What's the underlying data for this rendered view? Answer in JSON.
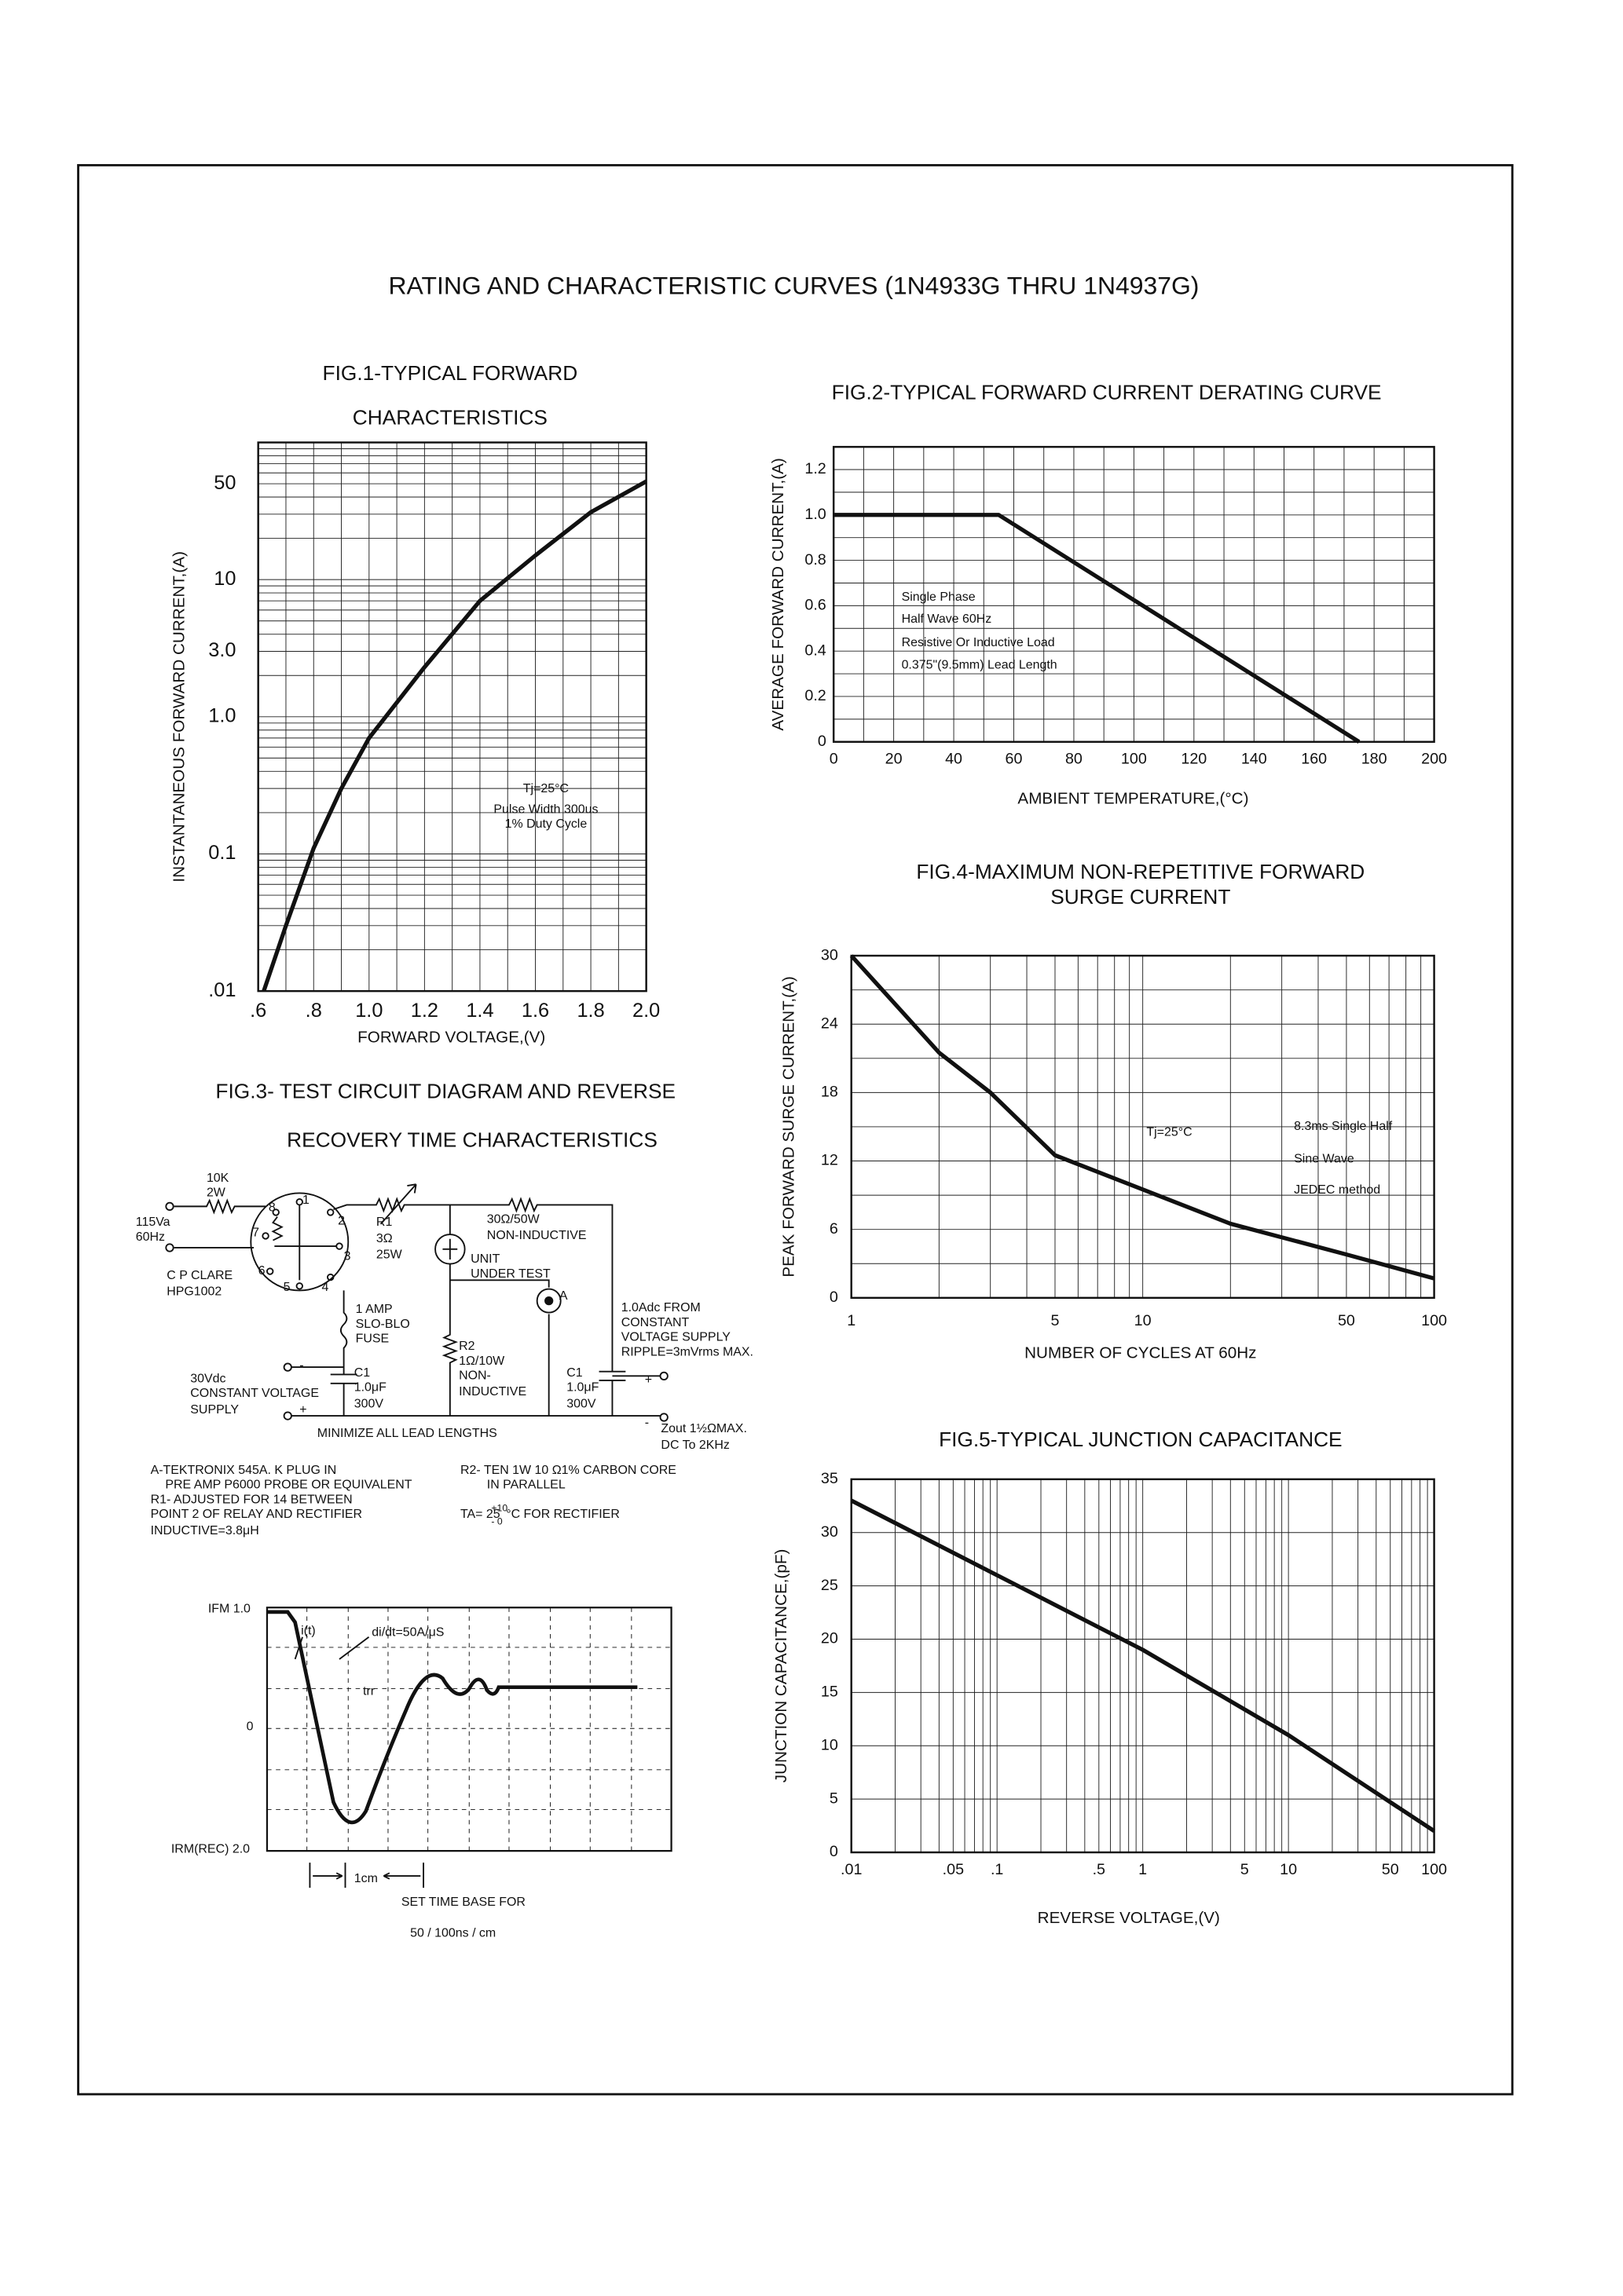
{
  "title": "RATING AND CHARACTERISTIC CURVES (1N4933G THRU 1N4937G)",
  "chart_data": [
    {
      "type": "line",
      "title": [
        "FIG.1-TYPICAL FORWARD",
        "CHARACTERISTICS"
      ],
      "x_label": "FORWARD VOLTAGE,(V)",
      "y_label": "INSTANTANEOUS FORWARD CURRENT,(A)",
      "xscale": "linear",
      "yscale": "log",
      "color": "#111111",
      "x": [
        0.62,
        0.7,
        0.8,
        0.9,
        1.0,
        1.2,
        1.4,
        1.6,
        1.8,
        2.0
      ],
      "values": [
        0.01,
        0.03,
        0.11,
        0.3,
        0.7,
        2.3,
        7,
        15,
        31,
        52
      ],
      "xlim": [
        0.6,
        2.0
      ],
      "ylim": [
        0.01,
        100
      ],
      "xticks": [
        {
          "value": 0.6,
          "label": ".6"
        },
        {
          "value": 0.8,
          "label": ".8"
        },
        {
          "value": 1.0,
          "label": "1.0"
        },
        1.2,
        1.4,
        1.6,
        1.8,
        {
          "value": 2.0,
          "label": "2.0"
        }
      ],
      "yticks": [
        {
          "value": 0.01,
          "label": ".01"
        },
        0.1,
        {
          "value": 1,
          "label": "1.0"
        },
        {
          "value": 3,
          "label": "3.0"
        },
        10,
        50
      ],
      "xgrid": [
        0.6,
        0.7,
        0.8,
        0.9,
        1.0,
        1.1,
        1.2,
        1.3,
        1.4,
        1.5,
        1.6,
        1.7,
        1.8,
        1.9,
        2.0
      ],
      "ygrid": [
        0.01,
        0.02,
        0.03,
        0.04,
        0.05,
        0.06,
        0.07,
        0.08,
        0.09,
        0.1,
        0.2,
        0.3,
        0.4,
        0.5,
        0.6,
        0.7,
        0.8,
        0.9,
        1,
        2,
        3,
        4,
        5,
        6,
        7,
        8,
        9,
        10,
        20,
        30,
        40,
        50,
        60,
        70,
        80,
        90,
        100
      ],
      "annotations": [
        "Tj=25°C",
        "Pulse Width 300us",
        "1% Duty Cycle"
      ]
    },
    {
      "type": "line",
      "title": [
        "FIG.2-TYPICAL FORWARD CURRENT DERATING CURVE"
      ],
      "x_label": "AMBIENT TEMPERATURE,(°C)",
      "y_label": "AVERAGE FORWARD CURRENT,(A)",
      "xscale": "linear",
      "yscale": "linear",
      "color": "#111111",
      "x": [
        0,
        55,
        175
      ],
      "values": [
        1.0,
        1.0,
        0
      ],
      "xlim": [
        0,
        200
      ],
      "ylim": [
        0,
        1.3
      ],
      "xticks": [
        0,
        20,
        40,
        60,
        80,
        100,
        120,
        140,
        160,
        180,
        200
      ],
      "yticks": [
        0,
        0.2,
        0.4,
        0.6,
        0.8,
        {
          "value": 1,
          "label": "1.0"
        },
        1.2
      ],
      "xgrid": [
        0,
        10,
        20,
        30,
        40,
        50,
        60,
        70,
        80,
        90,
        100,
        110,
        120,
        130,
        140,
        150,
        160,
        170,
        180,
        190,
        200
      ],
      "ygrid": [
        0,
        0.1,
        0.2,
        0.3,
        0.4,
        0.5,
        0.6,
        0.7,
        0.8,
        0.9,
        1.0,
        1.1,
        1.2,
        1.3
      ],
      "annotations": [
        "Single Phase",
        "Half Wave 60Hz",
        "Resistive Or Inductive Load",
        "0.375\"(9.5mm) Lead Length"
      ]
    },
    {
      "type": "line",
      "title": [
        "FIG.4-MAXIMUM NON-REPETITIVE FORWARD",
        "SURGE CURRENT"
      ],
      "x_label": "NUMBER OF CYCLES AT 60Hz",
      "y_label": "PEAK FORWARD SURGE CURRENT,(A)",
      "xscale": "log",
      "yscale": "linear",
      "color": "#111111",
      "x": [
        1,
        2,
        3,
        5,
        10,
        20,
        50,
        100
      ],
      "values": [
        30,
        21.5,
        18,
        12.5,
        9.5,
        6.5,
        3.8,
        1.7
      ],
      "xlim": [
        1,
        100
      ],
      "ylim": [
        0,
        30
      ],
      "xticks": [
        1,
        5,
        10,
        50,
        100
      ],
      "yticks": [
        0,
        6,
        12,
        18,
        24,
        30
      ],
      "xgrid": [
        1,
        2,
        3,
        4,
        5,
        6,
        7,
        8,
        9,
        10,
        20,
        30,
        40,
        50,
        60,
        70,
        80,
        90,
        100
      ],
      "ygrid": [
        0,
        3,
        6,
        9,
        12,
        15,
        18,
        21,
        24,
        27,
        30
      ],
      "annotations": [
        "Tj=25°C",
        "8.3ms Single Half",
        "Sine Wave",
        "JEDEC method"
      ]
    },
    {
      "type": "line",
      "title": [
        "FIG.5-TYPICAL JUNCTION CAPACITANCE"
      ],
      "x_label": "REVERSE VOLTAGE,(V)",
      "y_label": "JUNCTION CAPACITANCE,(pF)",
      "xscale": "log",
      "yscale": "linear",
      "color": "#111111",
      "x": [
        0.01,
        0.1,
        1,
        10,
        100
      ],
      "values": [
        33,
        26,
        19,
        11,
        2
      ],
      "xlim": [
        0.01,
        100
      ],
      "ylim": [
        0,
        35
      ],
      "xticks": [
        {
          "value": 0.01,
          "label": ".01"
        },
        {
          "value": 0.05,
          "label": ".05"
        },
        {
          "value": 0.1,
          "label": ".1"
        },
        {
          "value": 0.5,
          "label": ".5"
        },
        1,
        5,
        10,
        50,
        100
      ],
      "yticks": [
        0,
        5,
        10,
        15,
        20,
        25,
        30,
        35
      ],
      "xgrid": [
        0.01,
        0.02,
        0.03,
        0.04,
        0.05,
        0.06,
        0.07,
        0.08,
        0.09,
        0.1,
        0.2,
        0.3,
        0.4,
        0.5,
        0.6,
        0.7,
        0.8,
        0.9,
        1,
        2,
        3,
        4,
        5,
        6,
        7,
        8,
        9,
        10,
        20,
        30,
        40,
        50,
        60,
        70,
        80,
        90,
        100
      ],
      "ygrid": [
        0,
        5,
        10,
        15,
        20,
        25,
        30,
        35
      ],
      "annotations": []
    }
  ],
  "fig3": {
    "title": [
      "FIG.3- TEST CIRCUIT DIAGRAM AND REVERSE",
      "RECOVERY TIME CHARACTERISTICS"
    ],
    "circuit_labels": [
      "10K",
      "2W",
      "115Va",
      "60Hz",
      "8",
      "1",
      "7",
      "2",
      "3",
      "6",
      "5",
      "4",
      "C P CLARE",
      "HPG1002",
      "R1",
      "3Ω",
      "25W",
      "30Ω/50W",
      "NON-INDUCTIVE",
      "UNIT",
      "UNDER TEST",
      "A",
      "1 AMP",
      "SLO-BLO",
      "FUSE",
      "1.0Adc FROM",
      "CONSTANT",
      "VOLTAGE SUPPLY",
      "RIPPLE=3mVrms MAX.",
      "R2",
      "1Ω/10W",
      "NON-",
      "INDUCTIVE",
      "C1",
      "1.0μF",
      "300V",
      "C1",
      "1.0μF",
      "300V",
      "30Vdc",
      "CONSTANT VOLTAGE",
      "SUPPLY",
      "-",
      "+",
      "+",
      "-",
      "MINIMIZE ALL LEAD LENGTHS",
      "Zout 1½ΩMAX.",
      "DC To 2KHz"
    ],
    "notes": [
      "A-TEKTRONIX 545A. K PLUG IN",
      "PRE AMP P6000 PROBE OR EQUIVALENT",
      "R1- ADJUSTED FOR 14  BETWEEN",
      "POINT 2 OF RELAY AND RECTIFIER",
      "INDUCTIVE=3.8μH",
      "R2- TEN 1W 10 Ω1% CARBON CORE",
      "IN PARALLEL",
      "TA= 25",
      "+10",
      "- 0",
      "°C FOR RECTIFIER"
    ],
    "waveform_labels": [
      "IFM 1.0",
      "0",
      "IRM(REC) 2.0",
      "i(t)",
      "di/dt=50A/μS",
      "trr",
      "1cm",
      "SET TIME BASE FOR",
      "50 / 100ns / cm"
    ]
  }
}
